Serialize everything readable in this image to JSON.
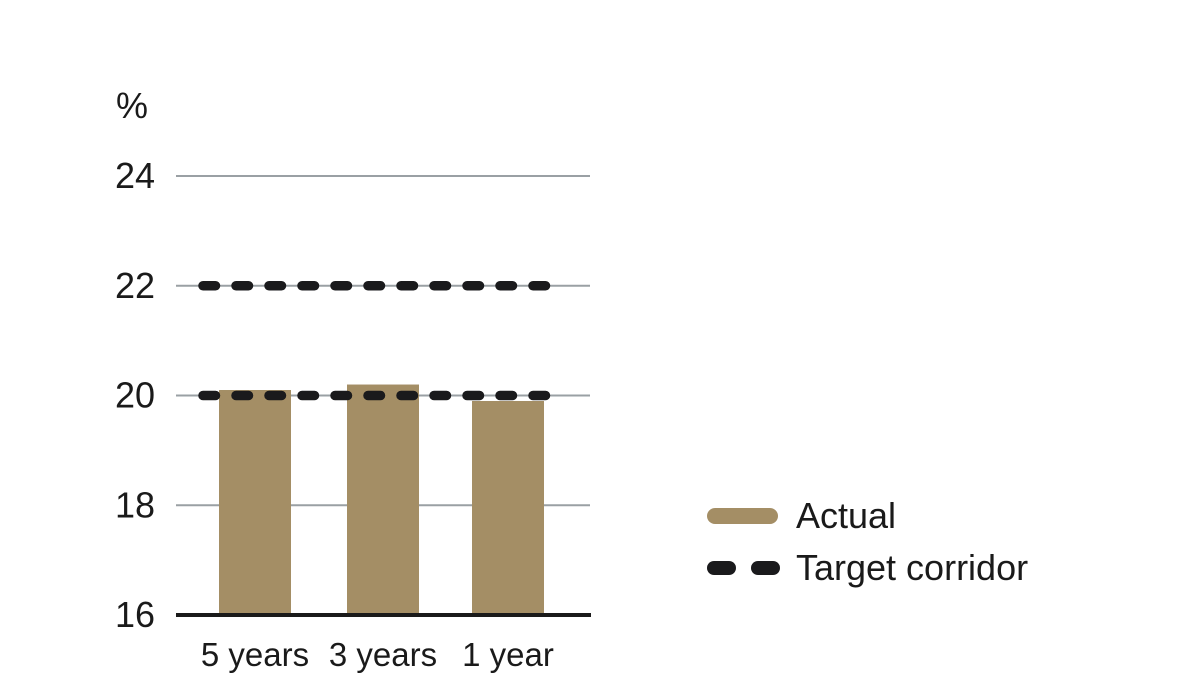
{
  "figure": {
    "background": "#ffffff"
  },
  "chart_data": {
    "type": "bar",
    "title": "",
    "unit_label": "%",
    "categories": [
      "5 years",
      "3 years",
      "1 year"
    ],
    "series": [
      {
        "name": "Actual",
        "values": [
          20.1,
          20.2,
          19.9
        ],
        "color": "#a48e65"
      }
    ],
    "target_corridor": {
      "name": "Target corridor",
      "lower": 20,
      "upper": 22,
      "style": "dashed",
      "color": "#1a1a1c"
    },
    "ylim": [
      16,
      24
    ],
    "yticks": [
      16,
      18,
      20,
      22,
      24
    ],
    "grid": true,
    "gridline_color": "#9aa0a4",
    "axis_color": "#1a1a1a",
    "text_color": "#1a1a1a",
    "legend_position": "right",
    "legend": [
      {
        "label": "Actual",
        "swatch": "bar"
      },
      {
        "label": "Target corridor",
        "swatch": "dashes"
      }
    ]
  }
}
